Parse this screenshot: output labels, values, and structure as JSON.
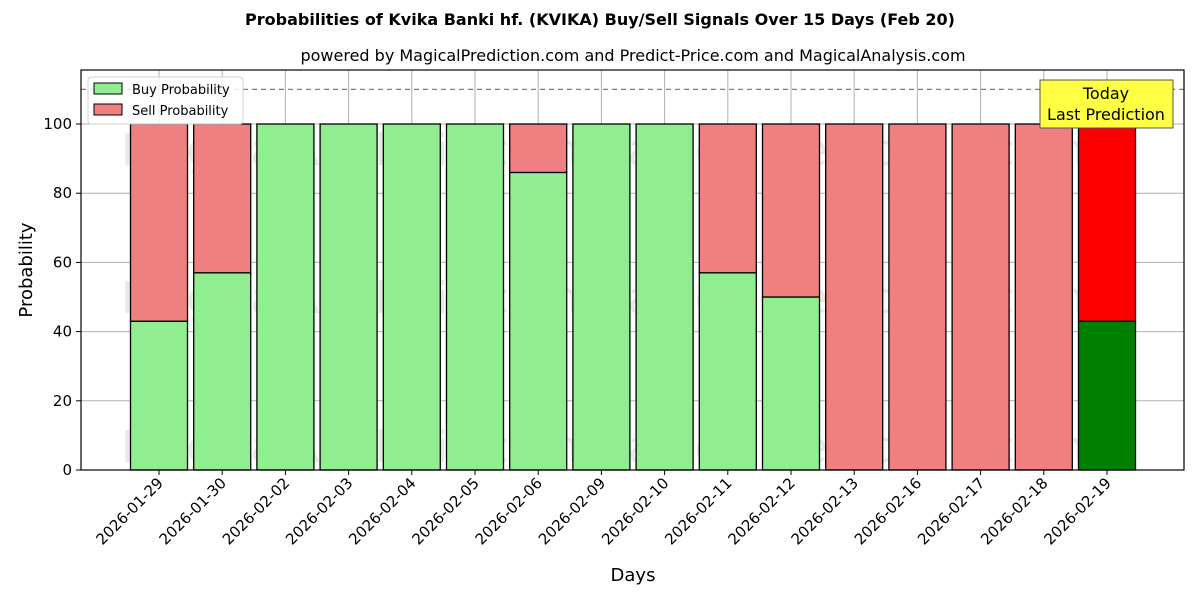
{
  "header": {
    "title": "Probabilities of Kvika Banki hf. (KVIKA) Buy/Sell Signals Over 15 Days (Feb 20)",
    "subtitle": "powered by MagicalPrediction.com and Predict-Price.com and MagicalAnalysis.com"
  },
  "legend": {
    "buy_label": "Buy Probability",
    "sell_label": "Sell Probability"
  },
  "annotation": {
    "line1": "Today",
    "line2": "Last Prediction"
  },
  "watermarks": [
    "MagicalAnalysis.com",
    "MagicalPrediction.com"
  ],
  "colors": {
    "buy": "#90ee90",
    "sell": "#f08080",
    "buy_today": "#008000",
    "sell_today": "#ff0000",
    "annotation_bg": "#ffff44"
  },
  "chart_data": {
    "type": "bar",
    "stacked": true,
    "title": "Probabilities of Kvika Banki hf. (KVIKA) Buy/Sell Signals Over 15 Days (Feb 20)",
    "subtitle": "powered by MagicalPrediction.com and Predict-Price.com and MagicalAnalysis.com",
    "xlabel": "Days",
    "ylabel": "Probability",
    "ylim": [
      0,
      115
    ],
    "yticks": [
      0,
      20,
      40,
      60,
      80,
      100
    ],
    "grid": true,
    "legend_position": "upper left",
    "reference_line": {
      "y": 110,
      "style": "dashed"
    },
    "categories": [
      "2026-01-29",
      "2026-01-30",
      "2026-02-02",
      "2026-02-03",
      "2026-02-04",
      "2026-02-05",
      "2026-02-06",
      "2026-02-09",
      "2026-02-10",
      "2026-02-11",
      "2026-02-12",
      "2026-02-13",
      "2026-02-16",
      "2026-02-17",
      "2026-02-18",
      "2026-02-19"
    ],
    "series": [
      {
        "name": "Buy Probability",
        "values": [
          43,
          57,
          100,
          100,
          100,
          100,
          86,
          100,
          100,
          57,
          50,
          0,
          0,
          0,
          0,
          43
        ]
      },
      {
        "name": "Sell Probability",
        "values": [
          57,
          43,
          0,
          0,
          0,
          0,
          14,
          0,
          0,
          43,
          50,
          100,
          100,
          100,
          100,
          57
        ]
      }
    ],
    "highlight": {
      "index": 15,
      "label": "Today\nLast Prediction"
    }
  }
}
